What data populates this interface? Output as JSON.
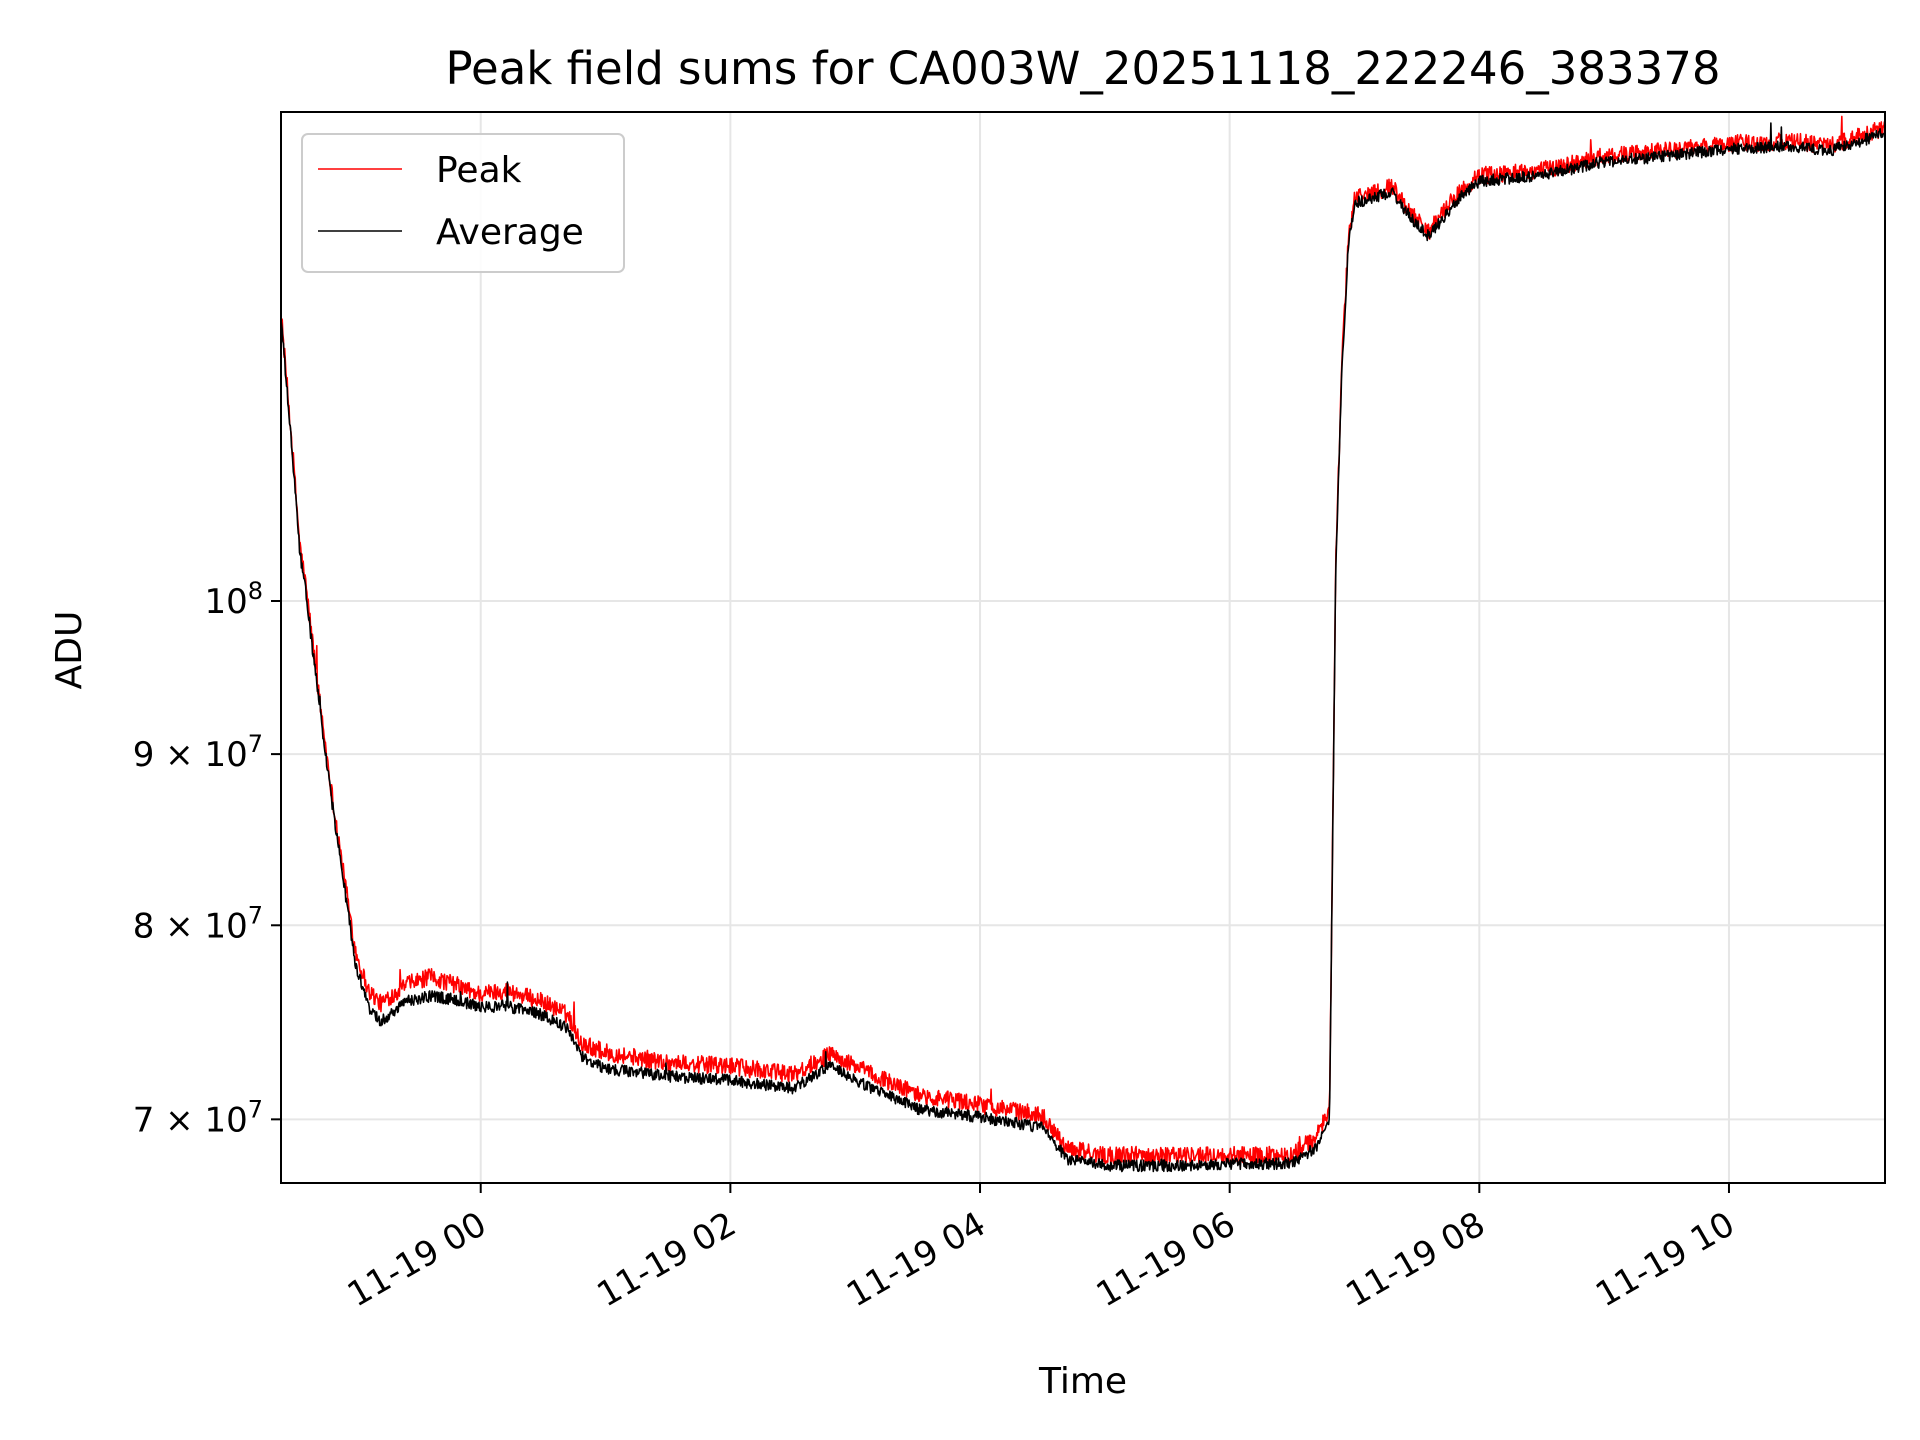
{
  "chart_data": {
    "type": "line",
    "title": "Peak field sums for CA003W_20251118_222246_383378",
    "xlabel": "Time",
    "ylabel": "ADU",
    "x_unit": "hours relative to 2025-11-19 00:00",
    "xlim": [
      -1.6,
      11.25
    ],
    "ylim": [
      67000000,
      140000000
    ],
    "yscale": "log",
    "grid": true,
    "legend_position": "top-left",
    "x_ticks": [
      {
        "value": 0,
        "label": "11-19 00"
      },
      {
        "value": 2,
        "label": "11-19 02"
      },
      {
        "value": 4,
        "label": "11-19 04"
      },
      {
        "value": 6,
        "label": "11-19 06"
      },
      {
        "value": 8,
        "label": "11-19 08"
      },
      {
        "value": 10,
        "label": "11-19 10"
      }
    ],
    "y_ticks": [
      {
        "value": 70000000,
        "mantissa": "7",
        "exponent": "7"
      },
      {
        "value": 80000000,
        "mantissa": "8",
        "exponent": "7"
      },
      {
        "value": 90000000,
        "mantissa": "9",
        "exponent": "7"
      },
      {
        "value": 100000000,
        "mantissa": "",
        "exponent": "8"
      }
    ],
    "tick_times_sign": "×",
    "tick_base": "10",
    "series": [
      {
        "name": "Peak",
        "color": "#ff0000",
        "noise_amp": 0.006,
        "x": [
          -1.6,
          -1.5,
          -1.45,
          -1.4,
          -1.3,
          -1.2,
          -1.1,
          -1.0,
          -0.9,
          -0.8,
          -0.6,
          -0.4,
          -0.2,
          -0.1,
          0,
          0.2,
          0.5,
          0.7,
          0.8,
          1.0,
          1.5,
          2.0,
          2.5,
          2.8,
          3.0,
          3.5,
          4.0,
          4.5,
          4.7,
          5.0,
          5.5,
          6.0,
          6.5,
          6.7,
          6.8,
          6.85,
          6.9,
          6.95,
          7.0,
          7.3,
          7.5,
          7.6,
          7.8,
          8.0,
          8.5,
          9.0,
          9.5,
          10.0,
          10.5,
          10.8,
          11.0,
          11.25
        ],
        "y": [
          122000000,
          110000000,
          104000000,
          101000000,
          94000000,
          88000000,
          83000000,
          78500000,
          76500000,
          75800000,
          76800000,
          77200000,
          76800000,
          76500000,
          76300000,
          76500000,
          75900000,
          75200000,
          73800000,
          73300000,
          72800000,
          72600000,
          72200000,
          73200000,
          72600000,
          71200000,
          70700000,
          70200000,
          68600000,
          68300000,
          68300000,
          68300000,
          68300000,
          69200000,
          70500000,
          103000000,
          118000000,
          128000000,
          132000000,
          133000000,
          130000000,
          129000000,
          132000000,
          134000000,
          134500000,
          135800000,
          136300000,
          137000000,
          137200000,
          136800000,
          137500000,
          138500000
        ]
      },
      {
        "name": "Average",
        "color": "#000000",
        "noise_amp": 0.004,
        "x": [
          -1.6,
          -1.5,
          -1.45,
          -1.4,
          -1.3,
          -1.2,
          -1.1,
          -1.0,
          -0.9,
          -0.8,
          -0.6,
          -0.4,
          -0.2,
          -0.1,
          0,
          0.2,
          0.5,
          0.7,
          0.8,
          1.0,
          1.5,
          2.0,
          2.5,
          2.8,
          3.0,
          3.5,
          4.0,
          4.5,
          4.7,
          5.0,
          5.5,
          6.0,
          6.5,
          6.7,
          6.8,
          6.85,
          6.9,
          6.95,
          7.0,
          7.3,
          7.5,
          7.6,
          7.8,
          8.0,
          8.5,
          9.0,
          9.5,
          10.0,
          10.5,
          10.8,
          11.0,
          11.25
        ],
        "y": [
          121500000,
          109500000,
          103500000,
          100500000,
          93500000,
          87500000,
          82500000,
          77800000,
          75600000,
          74900000,
          75900000,
          76200000,
          76000000,
          75800000,
          75600000,
          75700000,
          75200000,
          74500000,
          73100000,
          72500000,
          72100000,
          71900000,
          71500000,
          72600000,
          71900000,
          70500000,
          70100000,
          69600000,
          68100000,
          67800000,
          67800000,
          67900000,
          67900000,
          68700000,
          70000000,
          102500000,
          117500000,
          127500000,
          131500000,
          132500000,
          129500000,
          128500000,
          131500000,
          133500000,
          134000000,
          135300000,
          135800000,
          136500000,
          136700000,
          136300000,
          137000000,
          138000000
        ]
      }
    ]
  }
}
